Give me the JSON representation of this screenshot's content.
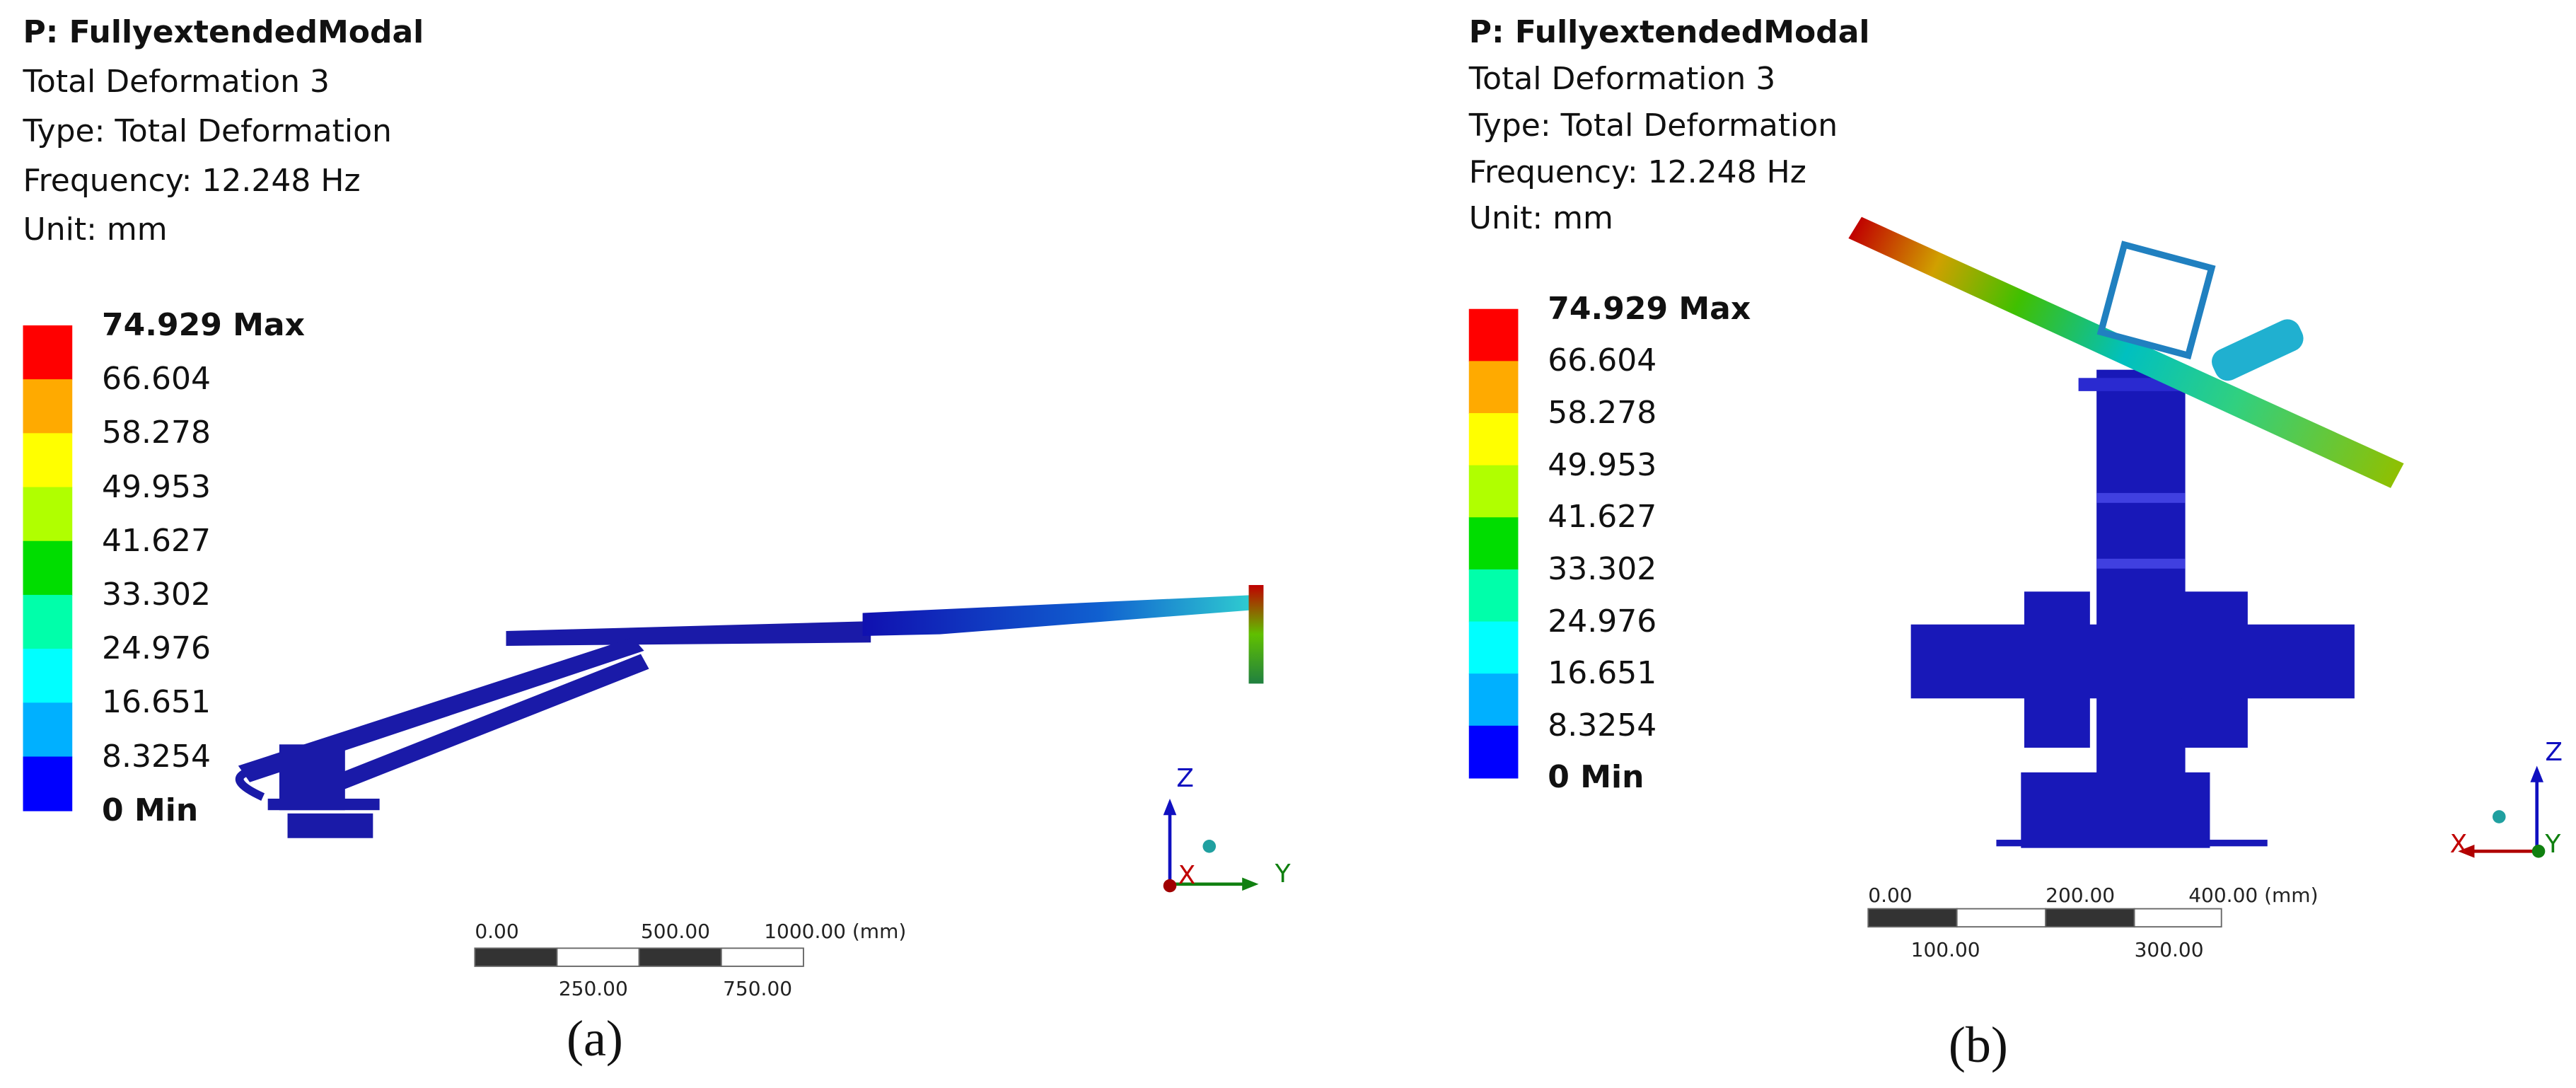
{
  "panels": [
    {
      "header": {
        "title": "P: FullyextendedModal",
        "lines": [
          "Total Deformation 3",
          "Type: Total Deformation",
          "Frequency: 12.248 Hz",
          "Unit: mm"
        ]
      },
      "legend": [
        "74.929 Max",
        "66.604",
        "58.278",
        "49.953",
        "41.627",
        "33.302",
        "24.976",
        "16.651",
        "8.3254",
        "0 Min"
      ],
      "scale": {
        "top": [
          "0.00",
          "500.00",
          "1000.00 (mm)"
        ],
        "bottom": [
          "250.00",
          "750.00"
        ]
      },
      "axes": [
        "Z",
        "X",
        "Y"
      ],
      "caption": "(a)"
    },
    {
      "header": {
        "title": "P: FullyextendedModal",
        "lines": [
          "Total Deformation 3",
          "Type: Total Deformation",
          "Frequency: 12.248 Hz",
          "Unit: mm"
        ]
      },
      "legend": [
        "74.929 Max",
        "66.604",
        "58.278",
        "49.953",
        "41.627",
        "33.302",
        "24.976",
        "16.651",
        "8.3254",
        "0 Min"
      ],
      "scale": {
        "top": [
          "0.00",
          "200.00",
          "400.00 (mm)"
        ],
        "bottom": [
          "100.00",
          "300.00"
        ]
      },
      "axes": [
        "Z",
        "X",
        "Y"
      ],
      "caption": "(b)"
    }
  ]
}
